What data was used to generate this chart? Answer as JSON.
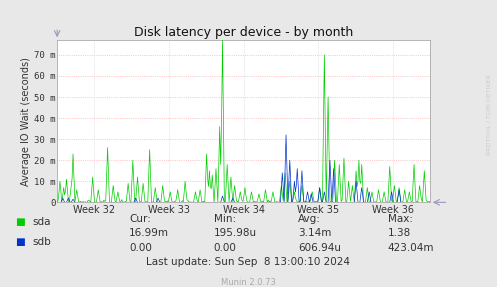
{
  "title": "Disk latency per device - by month",
  "ylabel": "Average IO Wait (seconds)",
  "x_tick_labels": [
    "Week 32",
    "Week 33",
    "Week 34",
    "Week 35",
    "Week 36"
  ],
  "ylim": [
    0,
    77
  ],
  "yticks": [
    0,
    10,
    20,
    30,
    40,
    50,
    60,
    70
  ],
  "ytick_labels": [
    "0",
    "10 m",
    "20 m",
    "30 m",
    "40 m",
    "50 m",
    "60 m",
    "70 m"
  ],
  "color_sda": "#00cc00",
  "color_sdb": "#0033cc",
  "bg_color": "#e8e8e8",
  "plot_bg_color": "#ffffff",
  "legend_sda": "sda",
  "legend_sdb": "sdb",
  "footer_munin": "Munin 2.0.73",
  "watermark": "RRDTOOL / TOBI OETIKER",
  "n_points": 400,
  "arrow_color": "#9999bb",
  "spine_color": "#aaaaaa",
  "grid_h_color": "#ff9999",
  "grid_v_color": "#cccccc",
  "text_color": "#333333",
  "footer_color": "#555555",
  "munin_color": "#aaaaaa",
  "stats": {
    "cur_row": [
      "Cur:",
      "Min:",
      "Avg:",
      "Max:"
    ],
    "sda_row": [
      "16.99m",
      "195.98u",
      "3.14m",
      "1.38"
    ],
    "sdb_row": [
      "0.00",
      "0.00",
      "606.94u",
      "423.04m"
    ],
    "last_update": "Last update: Sun Sep  8 13:00:10 2024"
  }
}
